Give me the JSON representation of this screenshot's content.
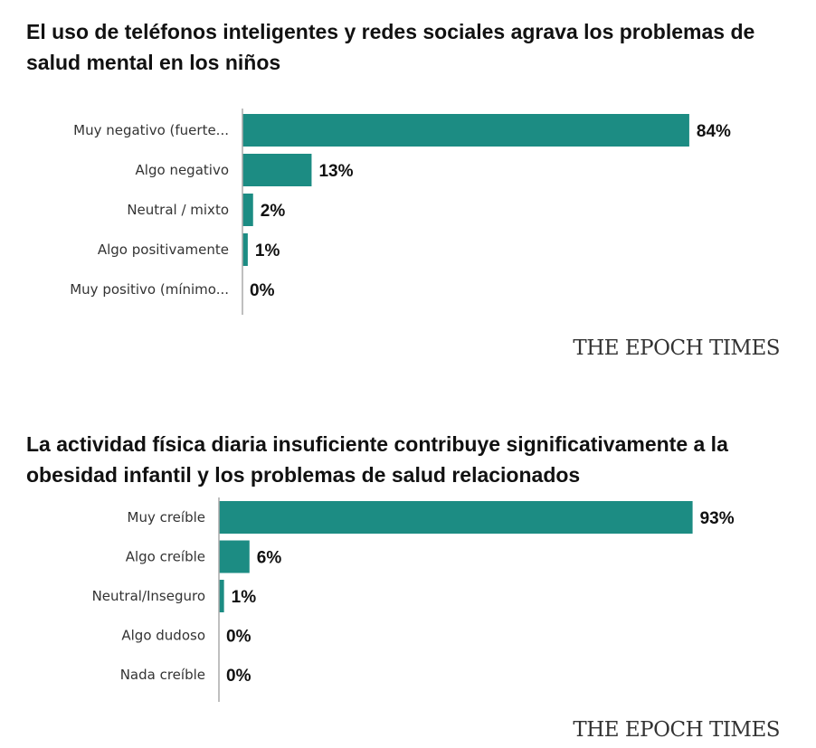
{
  "brand": {
    "logo_text": "THE EPOCH TIMES"
  },
  "colors": {
    "bar": "#1c8c83",
    "axis": "#aaaaaa"
  },
  "chart_data": [
    {
      "type": "bar",
      "orientation": "horizontal",
      "title": "El uso de teléfonos inteligentes y redes sociales agrava los problemas de salud mental en los niños",
      "categories": [
        "Muy negativo (fuerte...",
        "Algo negativo",
        "Neutral / mixto",
        "Algo positivamente",
        "Muy positivo (mínimo..."
      ],
      "values": [
        84,
        13,
        2,
        1,
        0
      ],
      "value_labels": [
        "84%",
        "13%",
        "2%",
        "1%",
        "0%"
      ],
      "xlim": [
        0,
        100
      ],
      "grid": false,
      "legend": "none"
    },
    {
      "type": "bar",
      "orientation": "horizontal",
      "title": "La actividad física diaria insuficiente contribuye significativamente a la obesidad infantil y los problemas de salud relacionados",
      "categories": [
        "Muy creíble",
        "Algo creíble",
        "Neutral/Inseguro",
        "Algo dudoso",
        "Nada creíble"
      ],
      "values": [
        93,
        6,
        1,
        0,
        0
      ],
      "value_labels": [
        "93%",
        "6%",
        "1%",
        "0%",
        "0%"
      ],
      "xlim": [
        0,
        100
      ],
      "grid": false,
      "legend": "none"
    }
  ]
}
